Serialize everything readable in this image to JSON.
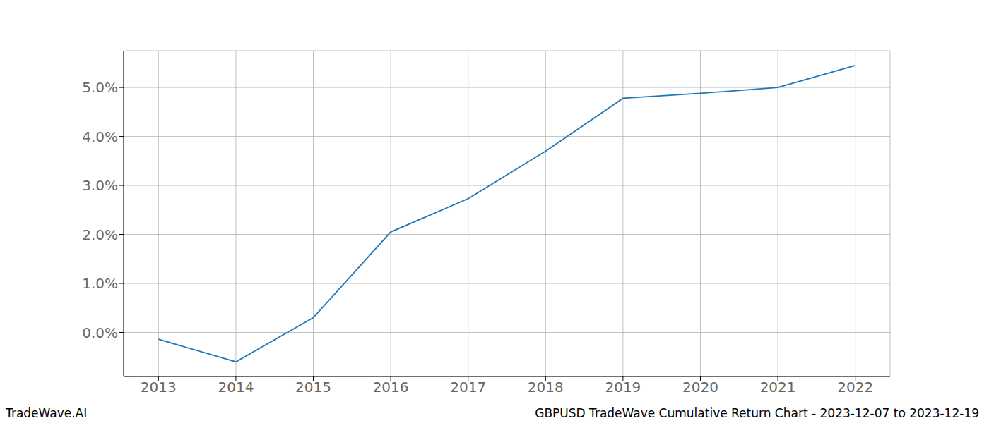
{
  "chart_data": {
    "type": "line",
    "title": "GBPUSD TradeWave Cumulative Return Chart - 2023-12-07 to 2023-12-19",
    "annotations": [
      "TradeWave.AI"
    ],
    "x": [
      2013,
      2014,
      2015,
      2016,
      2017,
      2018,
      2019,
      2020,
      2021,
      2022
    ],
    "values": [
      -0.14,
      -0.6,
      0.3,
      2.05,
      2.73,
      3.7,
      4.78,
      4.88,
      5.0,
      5.45
    ],
    "color": "#1f77b4",
    "xlim": [
      2012.55,
      2022.45
    ],
    "xticks": [
      2013,
      2014,
      2015,
      2016,
      2017,
      2018,
      2019,
      2020,
      2021,
      2022
    ],
    "ylim": [
      -0.9,
      5.75
    ],
    "yticks": [
      {
        "value": 0,
        "label": "0.0%"
      },
      {
        "value": 1,
        "label": "1.0%"
      },
      {
        "value": 2,
        "label": "2.0%"
      },
      {
        "value": 3,
        "label": "3.0%"
      },
      {
        "value": 4,
        "label": "4.0%"
      },
      {
        "value": 5,
        "label": "5.0%"
      }
    ],
    "grid": true
  }
}
